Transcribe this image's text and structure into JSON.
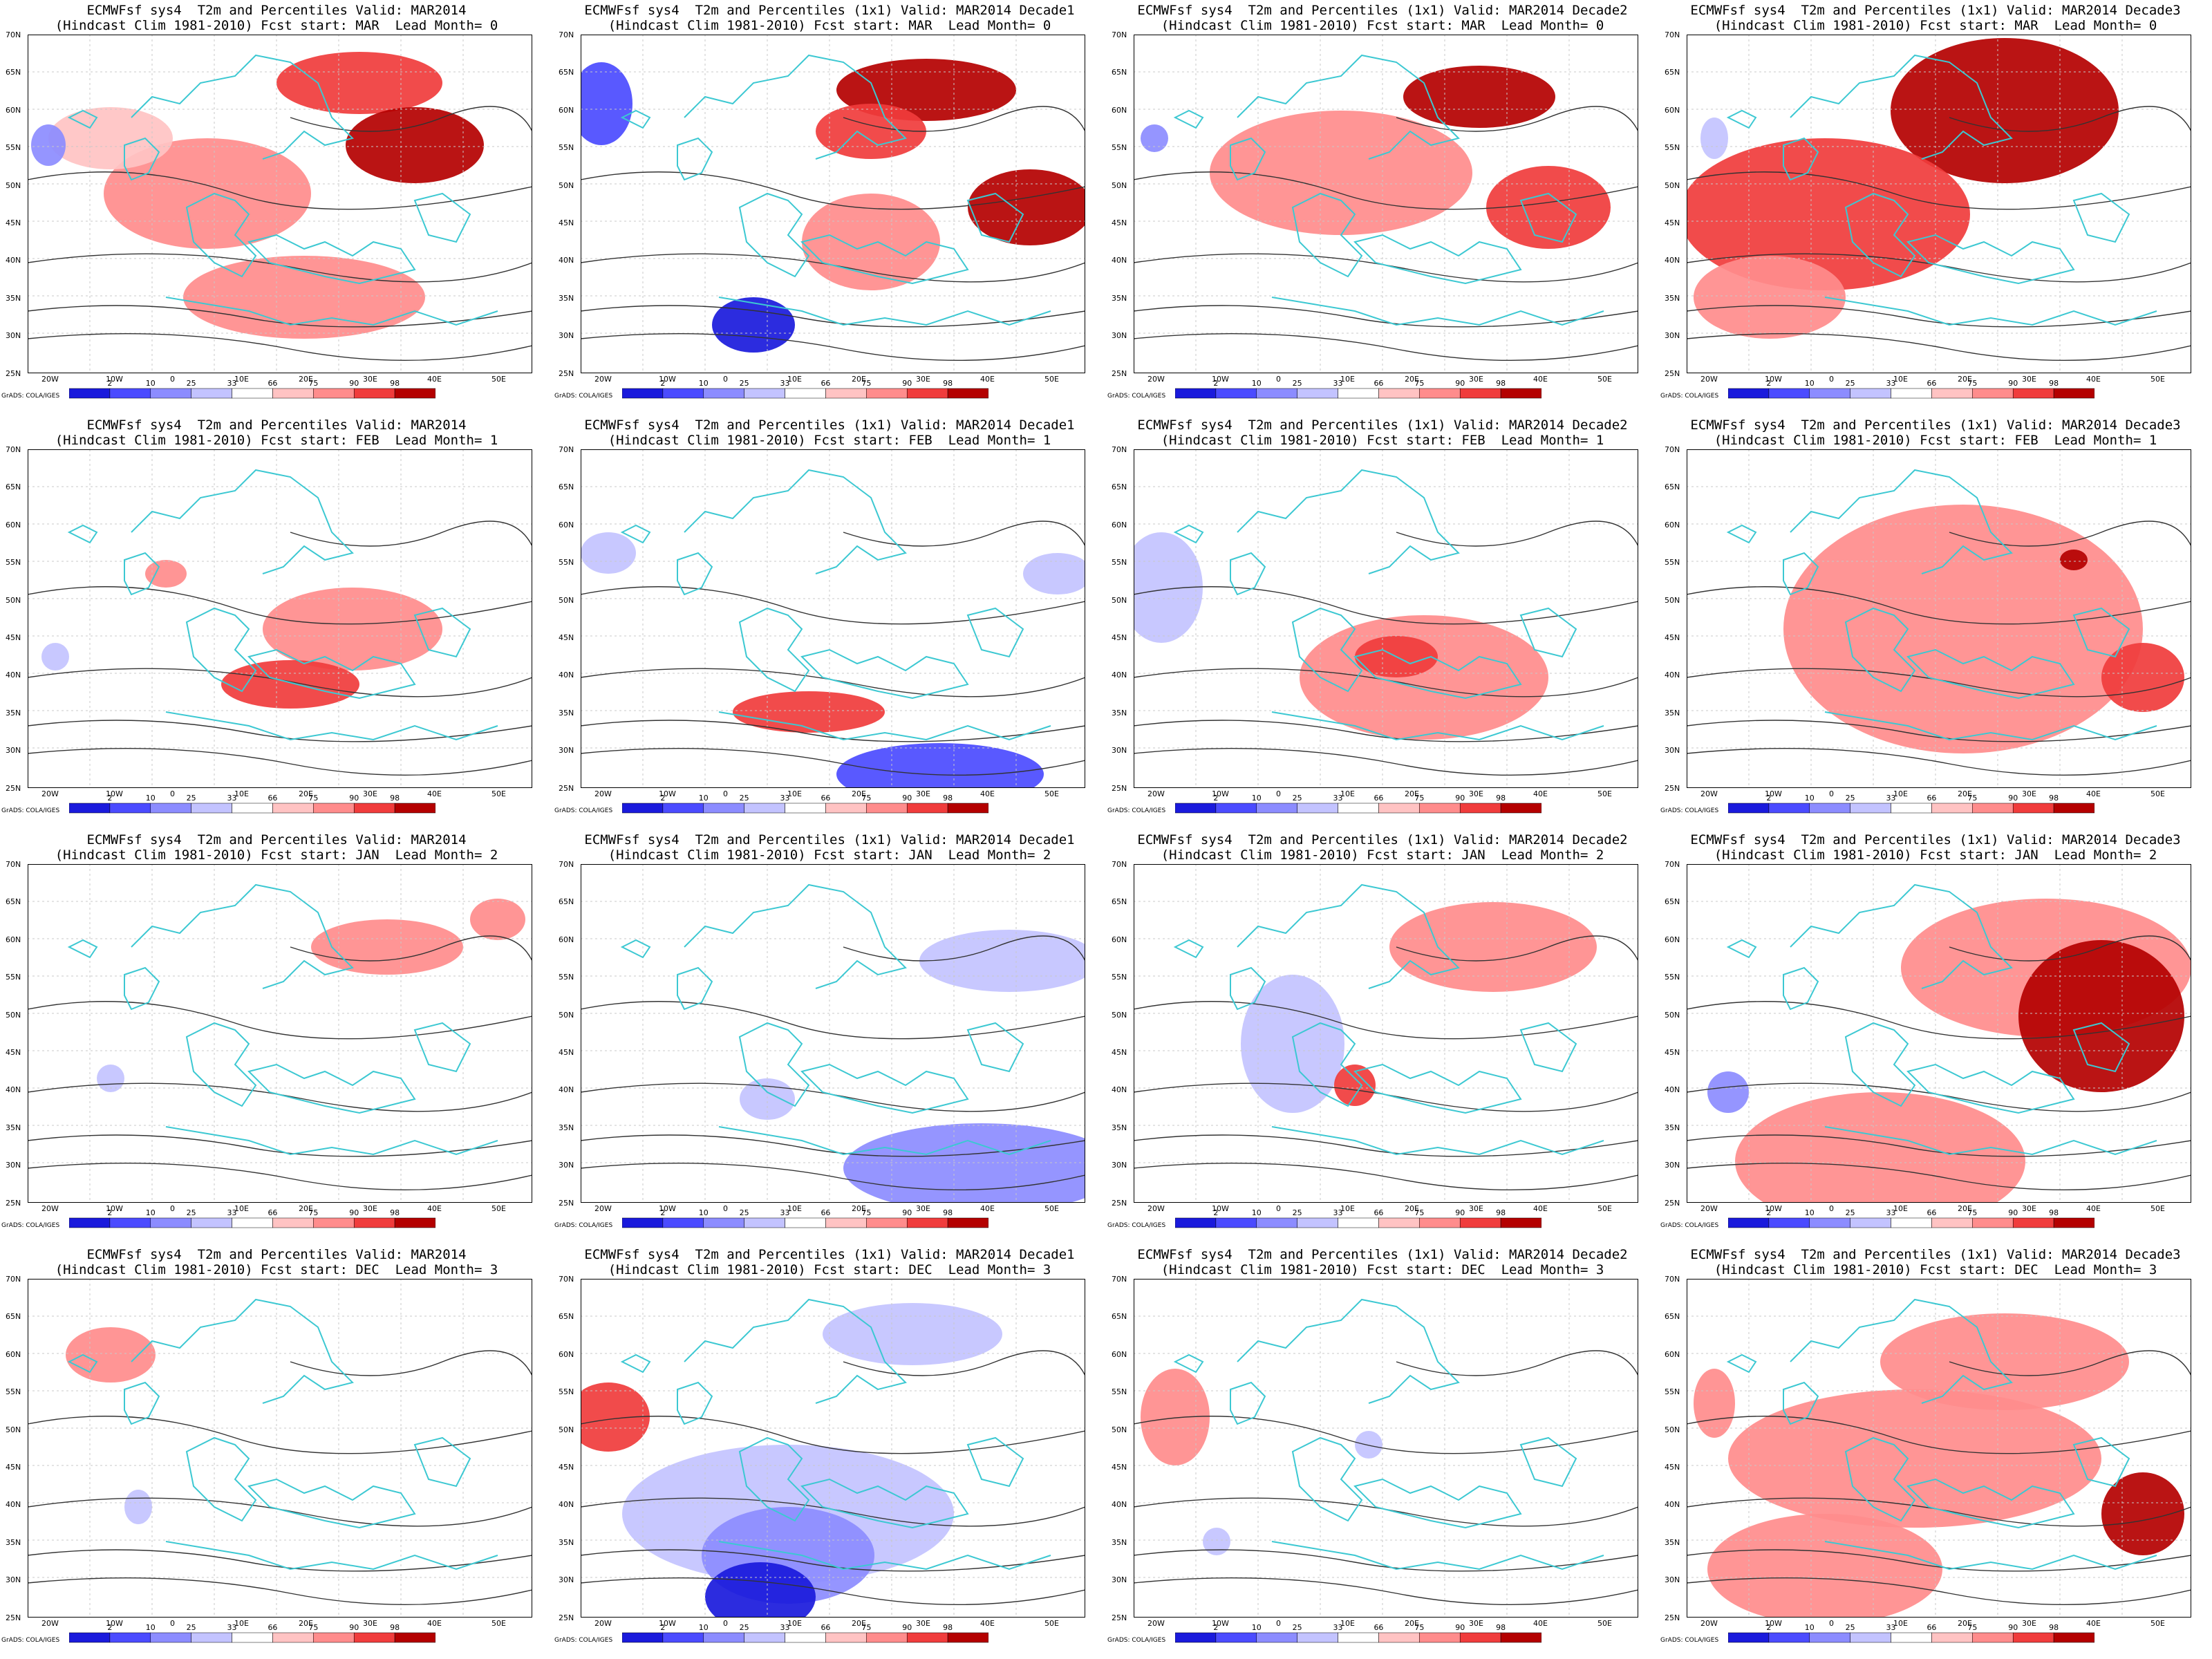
{
  "panels": [
    {
      "title1": "ECMWFsf sys4  T2m and Percentiles Valid: MAR2014",
      "title2": "(Hindcast Clim 1981-2010) Fcst start: MAR  Lead Month= 0"
    },
    {
      "title1": "ECMWFsf sys4  T2m and Percentiles (1x1) Valid: MAR2014 Decade1",
      "title2": "(Hindcast Clim 1981-2010) Fcst start: MAR  Lead Month= 0"
    },
    {
      "title1": "ECMWFsf sys4  T2m and Percentiles (1x1) Valid: MAR2014 Decade2",
      "title2": "(Hindcast Clim 1981-2010) Fcst start: MAR  Lead Month= 0"
    },
    {
      "title1": "ECMWFsf sys4  T2m and Percentiles (1x1) Valid: MAR2014 Decade3",
      "title2": "(Hindcast Clim 1981-2010) Fcst start: MAR  Lead Month= 0"
    },
    {
      "title1": "ECMWFsf sys4  T2m and Percentiles Valid: MAR2014",
      "title2": "(Hindcast Clim 1981-2010) Fcst start: FEB  Lead Month= 1"
    },
    {
      "title1": "ECMWFsf sys4  T2m and Percentiles (1x1) Valid: MAR2014 Decade1",
      "title2": "(Hindcast Clim 1981-2010) Fcst start: FEB  Lead Month= 1"
    },
    {
      "title1": "ECMWFsf sys4  T2m and Percentiles (1x1) Valid: MAR2014 Decade2",
      "title2": "(Hindcast Clim 1981-2010) Fcst start: FEB  Lead Month= 1"
    },
    {
      "title1": "ECMWFsf sys4  T2m and Percentiles (1x1) Valid: MAR2014 Decade3",
      "title2": "(Hindcast Clim 1981-2010) Fcst start: FEB  Lead Month= 1"
    },
    {
      "title1": "ECMWFsf sys4  T2m and Percentiles Valid: MAR2014",
      "title2": "(Hindcast Clim 1981-2010) Fcst start: JAN  Lead Month= 2"
    },
    {
      "title1": "ECMWFsf sys4  T2m and Percentiles (1x1) Valid: MAR2014 Decade1",
      "title2": "(Hindcast Clim 1981-2010) Fcst start: JAN  Lead Month= 2"
    },
    {
      "title1": "ECMWFsf sys4  T2m and Percentiles (1x1) Valid: MAR2014 Decade2",
      "title2": "(Hindcast Clim 1981-2010) Fcst start: JAN  Lead Month= 2"
    },
    {
      "title1": "ECMWFsf sys4  T2m and Percentiles (1x1) Valid: MAR2014 Decade3",
      "title2": "(Hindcast Clim 1981-2010) Fcst start: JAN  Lead Month= 2"
    },
    {
      "title1": "ECMWFsf sys4  T2m and Percentiles Valid: MAR2014",
      "title2": "(Hindcast Clim 1981-2010) Fcst start: DEC  Lead Month= 3"
    },
    {
      "title1": "ECMWFsf sys4  T2m and Percentiles (1x1) Valid: MAR2014 Decade1",
      "title2": "(Hindcast Clim 1981-2010) Fcst start: DEC  Lead Month= 3"
    },
    {
      "title1": "ECMWFsf sys4  T2m and Percentiles (1x1) Valid: MAR2014 Decade2",
      "title2": "(Hindcast Clim 1981-2010) Fcst start: DEC  Lead Month= 3"
    },
    {
      "title1": "ECMWFsf sys4  T2m and Percentiles (1x1) Valid: MAR2014 Decade3",
      "title2": "(Hindcast Clim 1981-2010) Fcst start: DEC  Lead Month= 3"
    }
  ],
  "lat_labels": [
    "70N",
    "65N",
    "60N",
    "55N",
    "50N",
    "45N",
    "40N",
    "35N",
    "30N",
    "25N"
  ],
  "lon_labels": [
    "20W",
    "10W",
    "0",
    "10E",
    "20E",
    "30E",
    "40E",
    "50E"
  ],
  "colorbar": {
    "labels": [
      "2",
      "10",
      "25",
      "33",
      "66",
      "75",
      "90",
      "98"
    ],
    "colors": [
      "#1a1adc",
      "#4b4bff",
      "#8c8cff",
      "#c3c3ff",
      "#ffffff",
      "#ffc3c3",
      "#ff8c8c",
      "#f03c3c",
      "#b40000"
    ]
  },
  "credit": "GrADS: COLA/IGES",
  "colors": {
    "coast": "#3cc8d2",
    "contour": "#333333",
    "gridline": "#c8c8c8"
  }
}
